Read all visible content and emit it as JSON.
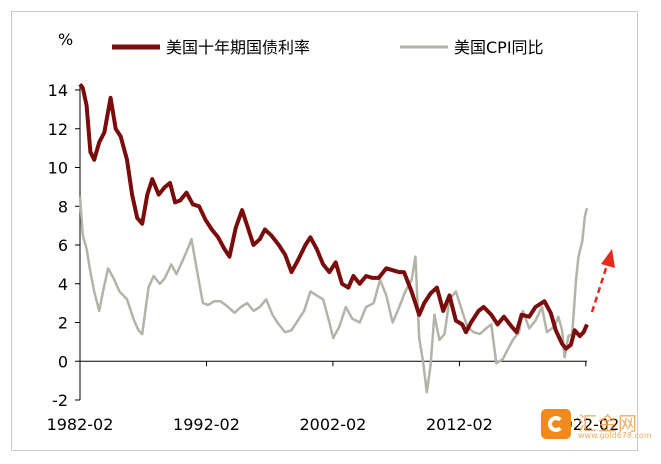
{
  "chart_data": {
    "type": "line",
    "ylabel": "%",
    "ylim": [
      -2,
      14
    ],
    "yticks": [
      "-2",
      "0",
      "2",
      "4",
      "6",
      "8",
      "10",
      "12",
      "14"
    ],
    "xrange": [
      1982.08,
      2022.17
    ],
    "xticks": [
      {
        "label": "1982-02",
        "x": 1982.08
      },
      {
        "label": "1992-02",
        "x": 1992.08
      },
      {
        "label": "2002-02",
        "x": 2002.08
      },
      {
        "label": "2012-02",
        "x": 2012.08
      },
      {
        "label": "2022-02",
        "x": 2022.08
      }
    ],
    "legend_position": "top",
    "grid": false,
    "series": [
      {
        "name": "美国十年期国债利率",
        "color": "#7a0c0c",
        "points": [
          [
            1982.08,
            14.3
          ],
          [
            1982.3,
            14.1
          ],
          [
            1982.6,
            13.2
          ],
          [
            1982.9,
            10.8
          ],
          [
            1983.2,
            10.4
          ],
          [
            1983.6,
            11.3
          ],
          [
            1984.0,
            11.8
          ],
          [
            1984.5,
            13.6
          ],
          [
            1984.9,
            12.0
          ],
          [
            1985.3,
            11.6
          ],
          [
            1985.8,
            10.4
          ],
          [
            1986.2,
            8.6
          ],
          [
            1986.6,
            7.4
          ],
          [
            1987.0,
            7.1
          ],
          [
            1987.4,
            8.6
          ],
          [
            1987.8,
            9.4
          ],
          [
            1988.3,
            8.6
          ],
          [
            1988.8,
            9.0
          ],
          [
            1989.2,
            9.2
          ],
          [
            1989.6,
            8.2
          ],
          [
            1990.0,
            8.3
          ],
          [
            1990.5,
            8.7
          ],
          [
            1991.0,
            8.1
          ],
          [
            1991.5,
            8.0
          ],
          [
            1992.0,
            7.3
          ],
          [
            1992.5,
            6.8
          ],
          [
            1993.0,
            6.4
          ],
          [
            1993.5,
            5.8
          ],
          [
            1993.9,
            5.4
          ],
          [
            1994.4,
            6.9
          ],
          [
            1994.9,
            7.8
          ],
          [
            1995.3,
            7.0
          ],
          [
            1995.8,
            6.0
          ],
          [
            1996.3,
            6.3
          ],
          [
            1996.7,
            6.8
          ],
          [
            1997.2,
            6.5
          ],
          [
            1997.8,
            6.0
          ],
          [
            1998.3,
            5.5
          ],
          [
            1998.8,
            4.6
          ],
          [
            1999.3,
            5.2
          ],
          [
            1999.9,
            6.0
          ],
          [
            2000.3,
            6.4
          ],
          [
            2000.8,
            5.8
          ],
          [
            2001.3,
            5.0
          ],
          [
            2001.8,
            4.6
          ],
          [
            2002.3,
            5.1
          ],
          [
            2002.8,
            4.0
          ],
          [
            2003.3,
            3.8
          ],
          [
            2003.7,
            4.4
          ],
          [
            2004.2,
            4.0
          ],
          [
            2004.7,
            4.4
          ],
          [
            2005.2,
            4.3
          ],
          [
            2005.7,
            4.3
          ],
          [
            2006.3,
            4.8
          ],
          [
            2006.8,
            4.7
          ],
          [
            2007.3,
            4.6
          ],
          [
            2007.7,
            4.6
          ],
          [
            2008.3,
            3.6
          ],
          [
            2008.9,
            2.4
          ],
          [
            2009.3,
            3.0
          ],
          [
            2009.8,
            3.5
          ],
          [
            2010.3,
            3.8
          ],
          [
            2010.8,
            2.6
          ],
          [
            2011.3,
            3.4
          ],
          [
            2011.8,
            2.1
          ],
          [
            2012.3,
            1.9
          ],
          [
            2012.6,
            1.5
          ],
          [
            2013.0,
            2.0
          ],
          [
            2013.6,
            2.6
          ],
          [
            2014.0,
            2.8
          ],
          [
            2014.6,
            2.4
          ],
          [
            2015.1,
            1.9
          ],
          [
            2015.6,
            2.3
          ],
          [
            2016.2,
            1.8
          ],
          [
            2016.6,
            1.5
          ],
          [
            2017.0,
            2.4
          ],
          [
            2017.6,
            2.3
          ],
          [
            2018.1,
            2.8
          ],
          [
            2018.8,
            3.1
          ],
          [
            2019.3,
            2.5
          ],
          [
            2019.7,
            1.6
          ],
          [
            2020.2,
            0.9
          ],
          [
            2020.5,
            0.65
          ],
          [
            2020.9,
            0.85
          ],
          [
            2021.2,
            1.6
          ],
          [
            2021.6,
            1.3
          ],
          [
            2021.9,
            1.5
          ],
          [
            2022.17,
            1.9
          ]
        ]
      },
      {
        "name": "美国CPI同比",
        "color": "#b3b3a8",
        "points": [
          [
            1982.08,
            8.5
          ],
          [
            1982.3,
            6.5
          ],
          [
            1982.6,
            5.8
          ],
          [
            1982.9,
            4.6
          ],
          [
            1983.2,
            3.6
          ],
          [
            1983.6,
            2.6
          ],
          [
            1983.9,
            3.6
          ],
          [
            1984.3,
            4.8
          ],
          [
            1984.8,
            4.2
          ],
          [
            1985.2,
            3.6
          ],
          [
            1985.8,
            3.2
          ],
          [
            1986.3,
            2.2
          ],
          [
            1986.7,
            1.6
          ],
          [
            1987.0,
            1.4
          ],
          [
            1987.5,
            3.8
          ],
          [
            1987.9,
            4.4
          ],
          [
            1988.4,
            4.0
          ],
          [
            1988.8,
            4.3
          ],
          [
            1989.3,
            5.0
          ],
          [
            1989.7,
            4.5
          ],
          [
            1990.2,
            5.2
          ],
          [
            1990.6,
            5.8
          ],
          [
            1990.9,
            6.3
          ],
          [
            1991.3,
            4.8
          ],
          [
            1991.8,
            3.0
          ],
          [
            1992.2,
            2.9
          ],
          [
            1992.7,
            3.1
          ],
          [
            1993.2,
            3.1
          ],
          [
            1993.8,
            2.8
          ],
          [
            1994.3,
            2.5
          ],
          [
            1994.8,
            2.8
          ],
          [
            1995.3,
            3.0
          ],
          [
            1995.8,
            2.6
          ],
          [
            1996.3,
            2.8
          ],
          [
            1996.8,
            3.2
          ],
          [
            1997.3,
            2.4
          ],
          [
            1997.8,
            1.9
          ],
          [
            1998.3,
            1.5
          ],
          [
            1998.8,
            1.6
          ],
          [
            1999.3,
            2.1
          ],
          [
            1999.8,
            2.6
          ],
          [
            2000.3,
            3.6
          ],
          [
            2000.8,
            3.4
          ],
          [
            2001.3,
            3.2
          ],
          [
            2001.8,
            2.0
          ],
          [
            2002.1,
            1.2
          ],
          [
            2002.6,
            1.8
          ],
          [
            2003.1,
            2.8
          ],
          [
            2003.6,
            2.2
          ],
          [
            2004.2,
            2.0
          ],
          [
            2004.7,
            2.8
          ],
          [
            2005.3,
            3.0
          ],
          [
            2005.8,
            4.2
          ],
          [
            2006.3,
            3.4
          ],
          [
            2006.8,
            2.0
          ],
          [
            2007.2,
            2.6
          ],
          [
            2007.8,
            3.6
          ],
          [
            2008.3,
            4.2
          ],
          [
            2008.6,
            5.4
          ],
          [
            2008.9,
            1.2
          ],
          [
            2009.2,
            0.0
          ],
          [
            2009.5,
            -1.6
          ],
          [
            2009.8,
            -0.2
          ],
          [
            2010.1,
            2.4
          ],
          [
            2010.5,
            1.1
          ],
          [
            2010.9,
            1.4
          ],
          [
            2011.3,
            3.2
          ],
          [
            2011.8,
            3.6
          ],
          [
            2012.2,
            2.8
          ],
          [
            2012.7,
            1.8
          ],
          [
            2013.2,
            1.5
          ],
          [
            2013.7,
            1.4
          ],
          [
            2014.2,
            1.7
          ],
          [
            2014.6,
            1.9
          ],
          [
            2015.0,
            -0.1
          ],
          [
            2015.5,
            0.1
          ],
          [
            2015.9,
            0.6
          ],
          [
            2016.3,
            1.1
          ],
          [
            2016.8,
            1.5
          ],
          [
            2017.1,
            2.6
          ],
          [
            2017.6,
            1.7
          ],
          [
            2018.1,
            2.1
          ],
          [
            2018.6,
            2.8
          ],
          [
            2019.0,
            1.5
          ],
          [
            2019.6,
            1.8
          ],
          [
            2019.9,
            2.3
          ],
          [
            2020.2,
            1.6
          ],
          [
            2020.4,
            0.2
          ],
          [
            2020.7,
            1.3
          ],
          [
            2021.0,
            1.4
          ],
          [
            2021.3,
            4.2
          ],
          [
            2021.5,
            5.4
          ],
          [
            2021.8,
            6.2
          ],
          [
            2022.0,
            7.5
          ],
          [
            2022.17,
            7.9
          ]
        ]
      }
    ],
    "annotations": [
      {
        "type": "arrow",
        "style": "dashed",
        "color": "#e8291e",
        "direction": "up-right"
      }
    ]
  },
  "watermark": {
    "text": "汇金网",
    "url": "www.gold678.com"
  }
}
